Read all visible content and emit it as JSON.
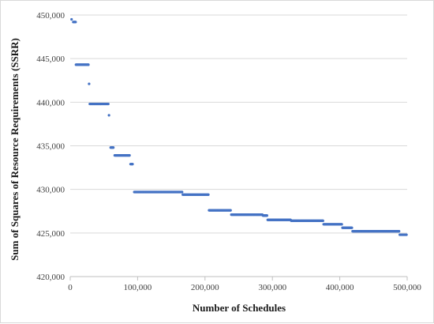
{
  "chart_data": {
    "type": "scatter",
    "title": "",
    "xlabel": "Number of Schedules",
    "ylabel": "Sum of Squares of Resource Requirements (SSRR)",
    "xlim": [
      0,
      500000
    ],
    "ylim": [
      420000,
      450000
    ],
    "x_ticks": [
      0,
      100000,
      200000,
      300000,
      400000,
      500000
    ],
    "x_tick_labels": [
      "0",
      "100,000",
      "200,000",
      "300,000",
      "400,000",
      "500,000"
    ],
    "y_ticks": [
      420000,
      425000,
      430000,
      435000,
      440000,
      445000,
      450000
    ],
    "y_tick_labels": [
      "420,000",
      "425,000",
      "430,000",
      "435,000",
      "440,000",
      "445,000",
      "450,000"
    ],
    "grid": "horizontal",
    "legend": "none",
    "marker_color": "#4472c4",
    "segments": [
      {
        "x_start": 2000,
        "x_end": 2000,
        "y": 449500
      },
      {
        "x_start": 4500,
        "x_end": 8000,
        "y": 449200
      },
      {
        "x_start": 8500,
        "x_end": 27000,
        "y": 444300
      },
      {
        "x_start": 28000,
        "x_end": 28000,
        "y": 442100
      },
      {
        "x_start": 29000,
        "x_end": 56500,
        "y": 439800
      },
      {
        "x_start": 57500,
        "x_end": 57500,
        "y": 438500
      },
      {
        "x_start": 60000,
        "x_end": 64000,
        "y": 434800
      },
      {
        "x_start": 66000,
        "x_end": 88000,
        "y": 433900
      },
      {
        "x_start": 89500,
        "x_end": 92500,
        "y": 432900
      },
      {
        "x_start": 95000,
        "x_end": 166000,
        "y": 429700
      },
      {
        "x_start": 167000,
        "x_end": 205000,
        "y": 429400
      },
      {
        "x_start": 206000,
        "x_end": 238000,
        "y": 427600
      },
      {
        "x_start": 239000,
        "x_end": 285000,
        "y": 427100
      },
      {
        "x_start": 286000,
        "x_end": 292000,
        "y": 427000
      },
      {
        "x_start": 293000,
        "x_end": 327000,
        "y": 426500
      },
      {
        "x_start": 328000,
        "x_end": 375000,
        "y": 426400
      },
      {
        "x_start": 376000,
        "x_end": 403000,
        "y": 426000
      },
      {
        "x_start": 404000,
        "x_end": 418000,
        "y": 425600
      },
      {
        "x_start": 419000,
        "x_end": 488000,
        "y": 425200
      },
      {
        "x_start": 489000,
        "x_end": 499000,
        "y": 424800
      }
    ]
  }
}
